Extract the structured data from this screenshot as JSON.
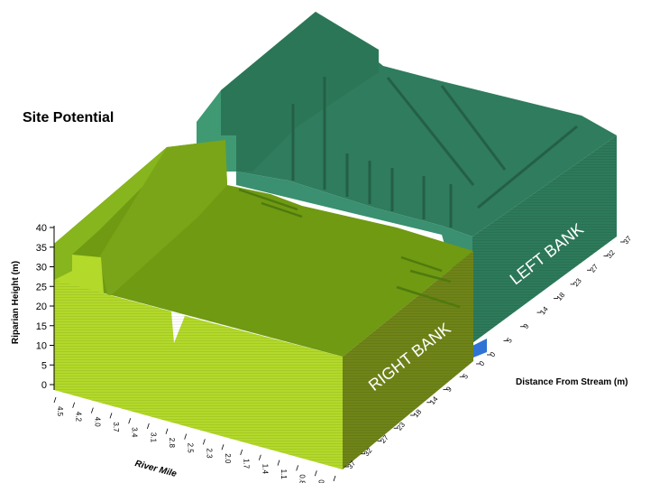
{
  "chart_data": {
    "type": "3d-surface",
    "title": "Site Potential",
    "zlabel": "Riparian Height (m)",
    "xlabel": "River Mile",
    "ylabel": "Distance From Stream  (m)",
    "zlim": [
      0,
      40
    ],
    "z_ticks": [
      "0",
      "5",
      "10",
      "15",
      "20",
      "25",
      "30",
      "35",
      "40"
    ],
    "river_mile_ticks": [
      "4.5",
      "4.2",
      "4.0",
      "3.7",
      "3.4",
      "3.1",
      "2.8",
      "2.5",
      "2.3",
      "2.0",
      "1.7",
      "1.4",
      "1.1",
      "0.8",
      "0.5",
      "0"
    ],
    "distance_ticks_right": [
      "37",
      "32",
      "27",
      "23",
      "18",
      "14",
      "9",
      "5",
      "0"
    ],
    "distance_ticks_left": [
      "0",
      "5",
      "9",
      "14",
      "18",
      "23",
      "27",
      "32",
      "37"
    ],
    "banks": [
      {
        "name": "RIGHT BANK",
        "typical_height": 27,
        "max_height": 35
      },
      {
        "name": "LEFT BANK",
        "typical_height": 30,
        "max_height": 40
      }
    ],
    "colors": {
      "right_top": "#6f9a12",
      "right_front": "#b3d92a",
      "right_side": "#6f8418",
      "left_top": "#2f7c5e",
      "left_face": "#3f9a74",
      "left_side": "#2d7a5a",
      "stream": "#2f74d4"
    }
  }
}
